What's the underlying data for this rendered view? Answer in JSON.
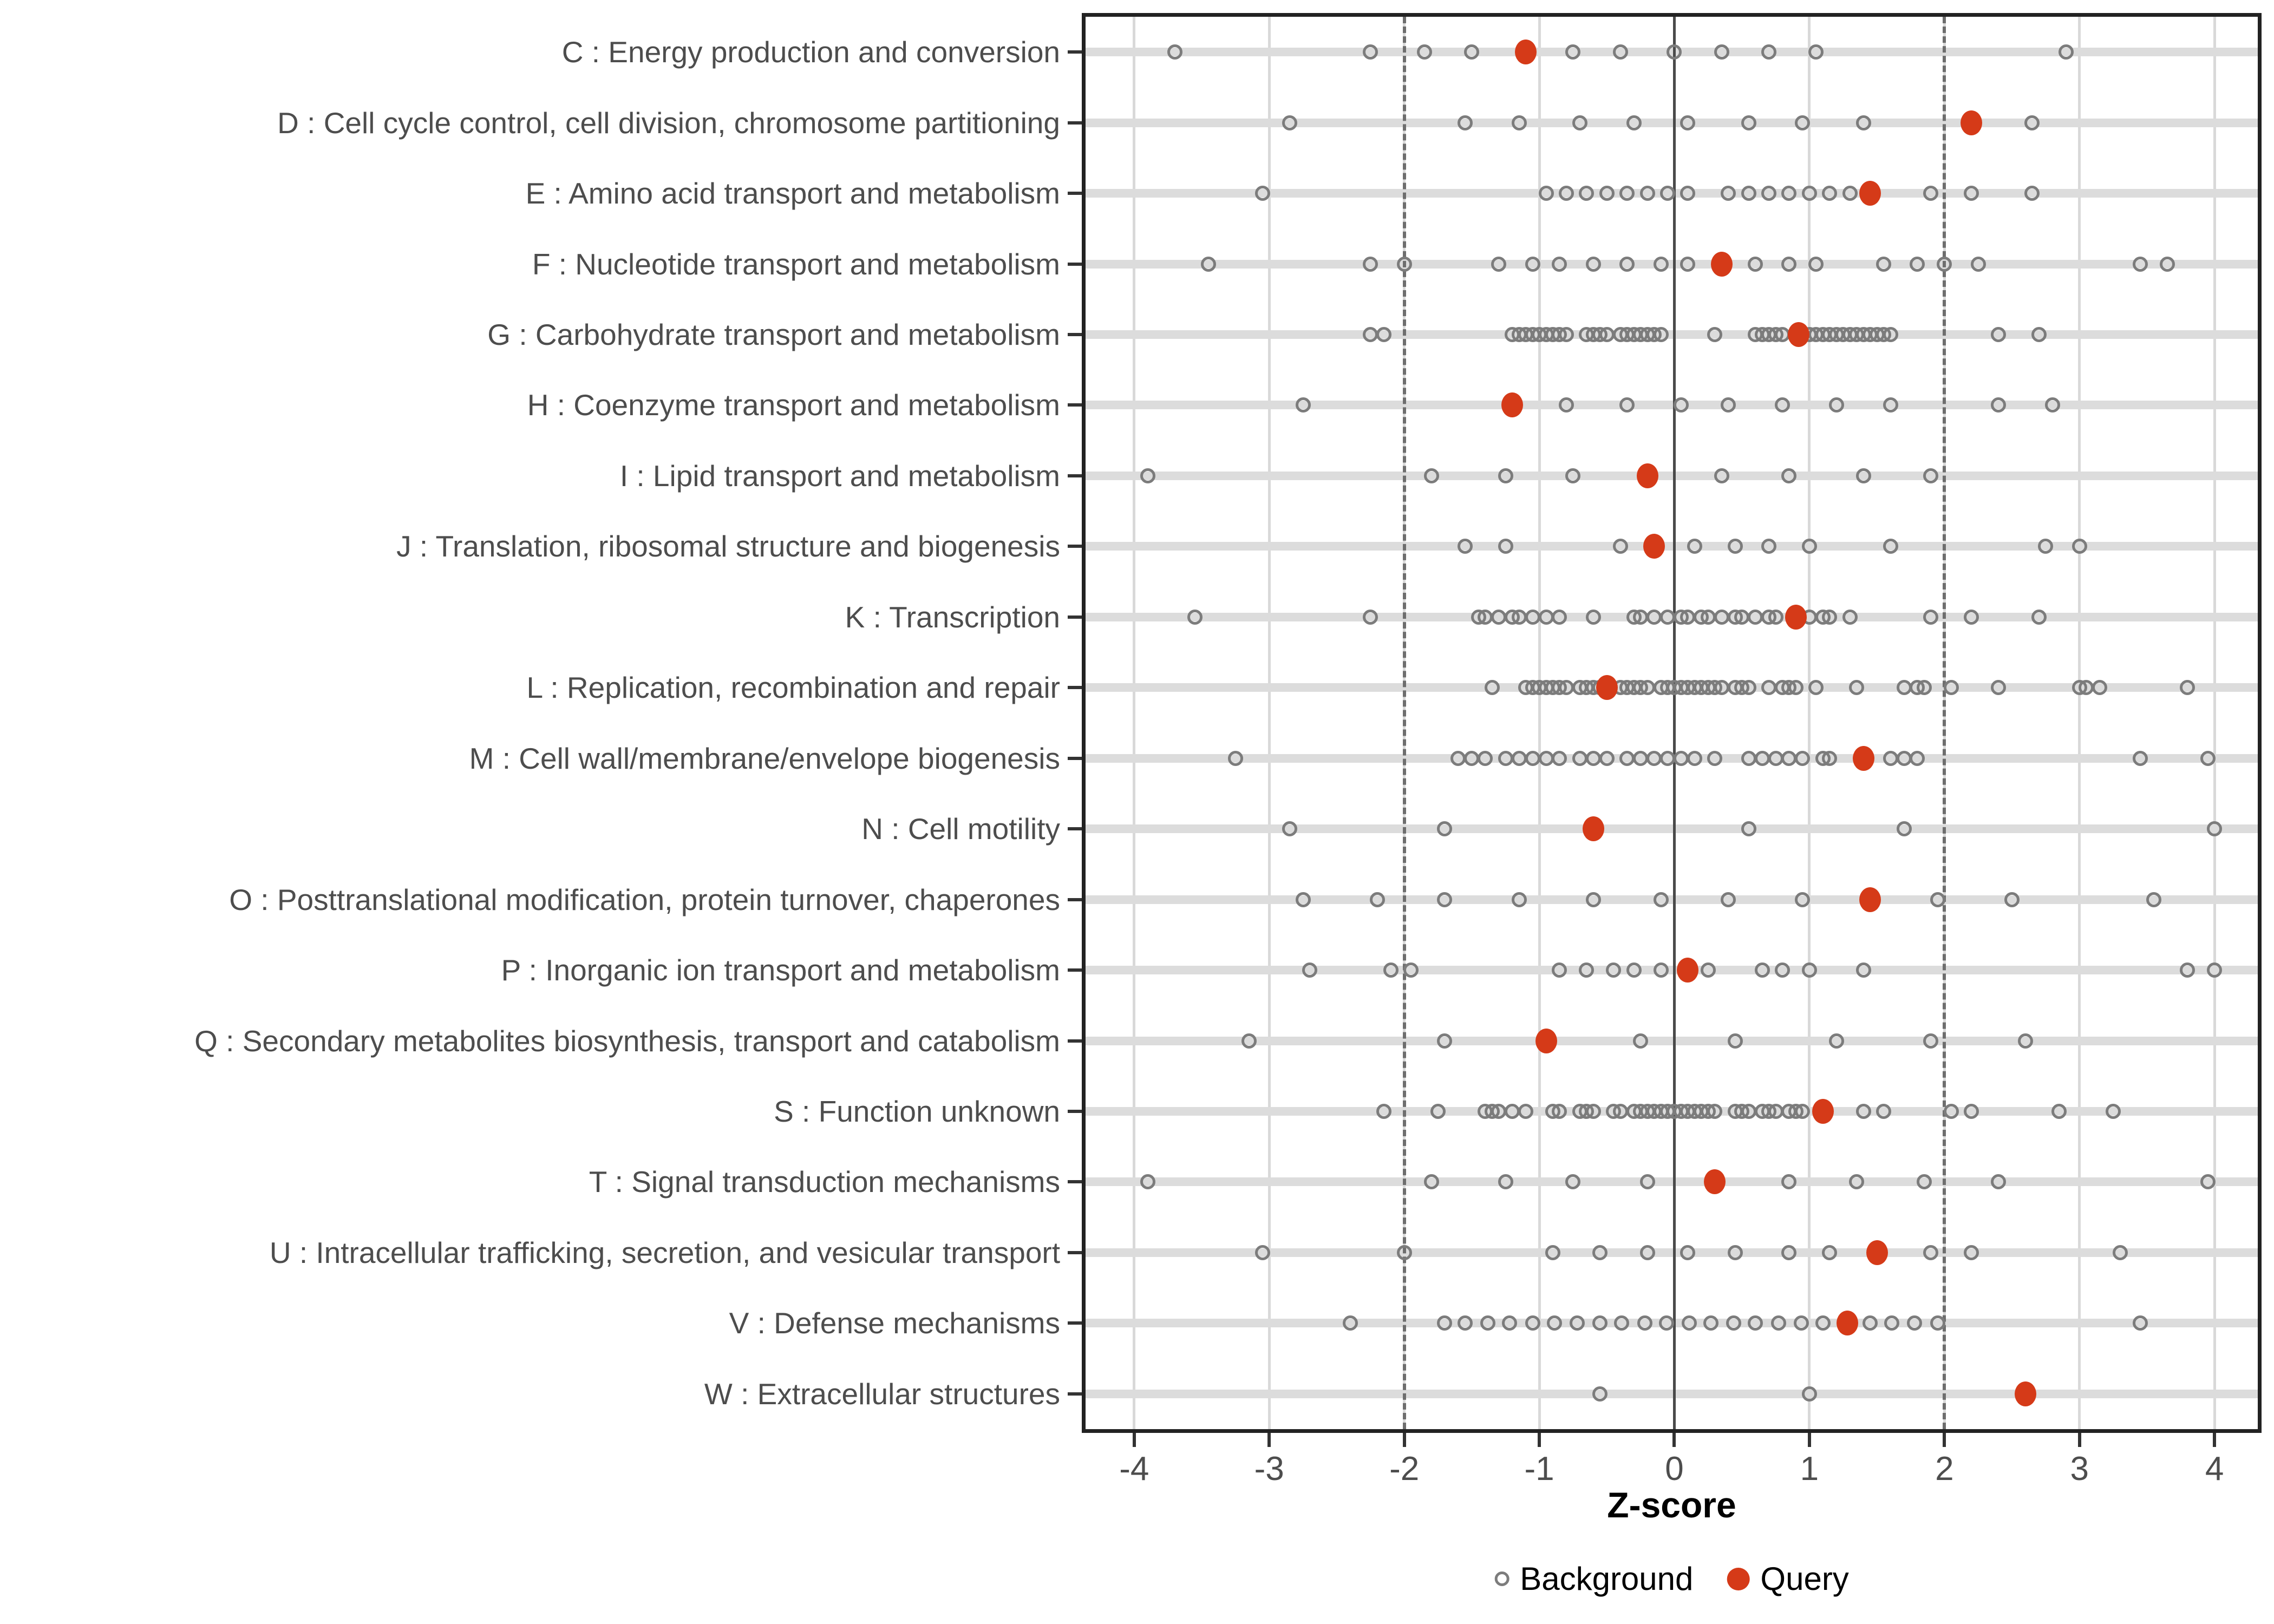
{
  "axis": {
    "title": "Z-score"
  },
  "legend": {
    "background_label": "Background",
    "query_label": "Query"
  },
  "colors": {
    "query_fill": "#d53a18",
    "background_stroke": "#7c7c7c",
    "row_stripe": "#dcdcdc",
    "gridline": "#d9d9d9",
    "zero_line": "#4a4a4a",
    "dashed_line": "#6e6e6e",
    "panel_border": "#222222",
    "axis_text": "#4d4d4d"
  },
  "chart_data": {
    "type": "scatter",
    "title": "",
    "xlabel": "Z-score",
    "ylabel": "",
    "xlim": [
      -4.36,
      4.32
    ],
    "x_ticks": [
      -4,
      -3,
      -2,
      -1,
      0,
      1,
      2,
      3,
      4
    ],
    "grid": "on",
    "legend_position": "bottom",
    "reference_lines": {
      "solid": [
        0
      ],
      "dashed": [
        -2,
        2
      ]
    },
    "series_names": [
      "Background",
      "Query"
    ],
    "rows": [
      {
        "code": "C",
        "label": "C : Energy production and conversion",
        "query": -1.1,
        "background": [
          -3.7,
          -2.25,
          -1.85,
          -1.5,
          -0.75,
          -0.4,
          0,
          0.35,
          0.7,
          1.05,
          2.9
        ]
      },
      {
        "code": "D",
        "label": "D : Cell cycle control, cell division, chromosome partitioning",
        "query": 2.2,
        "background": [
          -2.85,
          -1.55,
          -1.15,
          -0.7,
          -0.3,
          0.1,
          0.55,
          0.95,
          1.4,
          2.65
        ]
      },
      {
        "code": "E",
        "label": "E : Amino acid transport and metabolism",
        "query": 1.45,
        "background": [
          -3.05,
          -0.95,
          -0.8,
          -0.65,
          -0.5,
          -0.35,
          -0.2,
          -0.05,
          0.1,
          0.4,
          0.55,
          0.7,
          0.85,
          1.0,
          1.15,
          1.3,
          1.9,
          2.2,
          2.65
        ]
      },
      {
        "code": "F",
        "label": "F : Nucleotide transport and metabolism",
        "query": 0.35,
        "background": [
          -3.45,
          -2.25,
          -2.0,
          -1.3,
          -1.05,
          -0.85,
          -0.6,
          -0.35,
          -0.1,
          0.1,
          0.6,
          0.85,
          1.05,
          1.55,
          1.8,
          2.0,
          2.25,
          3.45,
          3.65
        ]
      },
      {
        "code": "G",
        "label": "G : Carbohydrate transport and metabolism",
        "query": 0.92,
        "background": [
          -2.25,
          -2.15,
          -1.2,
          -1.15,
          -1.1,
          -1.05,
          -1.0,
          -0.95,
          -0.9,
          -0.85,
          -0.8,
          -0.65,
          -0.6,
          -0.55,
          -0.5,
          -0.4,
          -0.35,
          -0.3,
          -0.25,
          -0.2,
          -0.15,
          -0.1,
          0.3,
          0.6,
          0.65,
          0.7,
          0.75,
          0.8,
          1.0,
          1.05,
          1.1,
          1.15,
          1.2,
          1.25,
          1.3,
          1.35,
          1.4,
          1.45,
          1.5,
          1.55,
          1.6,
          2.4,
          2.7
        ]
      },
      {
        "code": "H",
        "label": "H : Coenzyme transport and metabolism",
        "query": -1.2,
        "background": [
          -2.75,
          -0.8,
          -0.35,
          0.05,
          0.4,
          0.8,
          1.2,
          1.6,
          2.4,
          2.8
        ]
      },
      {
        "code": "I",
        "label": "I : Lipid transport and metabolism",
        "query": -0.2,
        "background": [
          -3.9,
          -1.8,
          -1.25,
          -0.75,
          0.35,
          0.85,
          1.4,
          1.9
        ]
      },
      {
        "code": "J",
        "label": "J : Translation, ribosomal structure and biogenesis",
        "query": -0.15,
        "background": [
          -1.55,
          -1.25,
          -0.4,
          0.15,
          0.45,
          0.7,
          1.0,
          1.6,
          2.75,
          3.0
        ]
      },
      {
        "code": "K",
        "label": "K : Transcription",
        "query": 0.9,
        "background": [
          -3.55,
          -2.25,
          -1.45,
          -1.4,
          -1.3,
          -1.2,
          -1.15,
          -1.05,
          -0.95,
          -0.85,
          -0.6,
          -0.3,
          -0.25,
          -0.15,
          -0.05,
          0.05,
          0.1,
          0.2,
          0.25,
          0.35,
          0.45,
          0.5,
          0.6,
          0.7,
          0.75,
          1.0,
          1.1,
          1.15,
          1.3,
          1.9,
          2.2,
          2.7
        ]
      },
      {
        "code": "L",
        "label": "L : Replication, recombination and repair",
        "query": -0.5,
        "background": [
          -1.35,
          -1.1,
          -1.05,
          -1.0,
          -0.95,
          -0.9,
          -0.85,
          -0.8,
          -0.7,
          -0.65,
          -0.6,
          -0.55,
          -0.4,
          -0.35,
          -0.3,
          -0.25,
          -0.2,
          -0.1,
          -0.05,
          0.0,
          0.05,
          0.1,
          0.15,
          0.2,
          0.25,
          0.3,
          0.35,
          0.45,
          0.5,
          0.55,
          0.7,
          0.8,
          0.85,
          0.9,
          1.05,
          1.35,
          1.7,
          1.8,
          1.85,
          2.05,
          2.4,
          3.0,
          3.05,
          3.15,
          3.8
        ]
      },
      {
        "code": "M",
        "label": "M : Cell wall/membrane/envelope biogenesis",
        "query": 1.4,
        "background": [
          -3.25,
          -1.6,
          -1.5,
          -1.4,
          -1.25,
          -1.15,
          -1.05,
          -0.95,
          -0.85,
          -0.7,
          -0.6,
          -0.5,
          -0.35,
          -0.25,
          -0.15,
          -0.05,
          0.05,
          0.15,
          0.3,
          0.55,
          0.65,
          0.75,
          0.85,
          0.95,
          1.1,
          1.15,
          1.6,
          1.7,
          1.8,
          3.45,
          3.95
        ]
      },
      {
        "code": "N",
        "label": "N : Cell motility",
        "query": -0.6,
        "background": [
          -2.85,
          -1.7,
          0.55,
          1.7,
          4.0
        ]
      },
      {
        "code": "O",
        "label": "O : Posttranslational modification, protein turnover, chaperones",
        "query": 1.45,
        "background": [
          -2.75,
          -2.2,
          -1.7,
          -1.15,
          -0.6,
          -0.1,
          0.4,
          0.95,
          1.95,
          2.5,
          3.55
        ]
      },
      {
        "code": "P",
        "label": "P : Inorganic ion transport and metabolism",
        "query": 0.1,
        "background": [
          -2.7,
          -2.1,
          -1.95,
          -0.85,
          -0.65,
          -0.45,
          -0.3,
          -0.1,
          0.25,
          0.65,
          0.8,
          1.0,
          1.4,
          3.8,
          4.0
        ]
      },
      {
        "code": "Q",
        "label": "Q : Secondary metabolites biosynthesis, transport and catabolism",
        "query": -0.95,
        "background": [
          -3.15,
          -1.7,
          -0.25,
          0.45,
          1.2,
          1.9,
          2.6
        ]
      },
      {
        "code": "S",
        "label": "S : Function unknown",
        "query": 1.1,
        "background": [
          -2.15,
          -1.75,
          -1.4,
          -1.35,
          -1.3,
          -1.2,
          -1.1,
          -0.9,
          -0.85,
          -0.7,
          -0.65,
          -0.6,
          -0.45,
          -0.4,
          -0.3,
          -0.25,
          -0.2,
          -0.15,
          -0.1,
          -0.05,
          0.0,
          0.05,
          0.1,
          0.15,
          0.2,
          0.25,
          0.3,
          0.45,
          0.5,
          0.55,
          0.65,
          0.7,
          0.75,
          0.85,
          0.9,
          0.95,
          1.4,
          1.55,
          2.05,
          2.2,
          2.85,
          3.25
        ]
      },
      {
        "code": "T",
        "label": "T : Signal transduction mechanisms",
        "query": 0.3,
        "background": [
          -3.9,
          -1.8,
          -1.25,
          -0.75,
          -0.2,
          0.85,
          1.35,
          1.85,
          2.4,
          3.95
        ]
      },
      {
        "code": "U",
        "label": "U : Intracellular trafficking, secretion, and vesicular transport",
        "query": 1.5,
        "background": [
          -3.05,
          -2.0,
          -0.9,
          -0.55,
          -0.2,
          0.1,
          0.45,
          0.85,
          1.15,
          1.9,
          2.2,
          3.3
        ]
      },
      {
        "code": "V",
        "label": "V : Defense mechanisms",
        "query": 1.28,
        "background": [
          -2.4,
          -1.7,
          -1.55,
          -1.38,
          -1.22,
          -1.05,
          -0.89,
          -0.72,
          -0.55,
          -0.39,
          -0.22,
          -0.06,
          0.11,
          0.27,
          0.44,
          0.6,
          0.77,
          0.94,
          1.1,
          1.45,
          1.61,
          1.78,
          1.95,
          3.45
        ]
      },
      {
        "code": "W",
        "label": "W : Extracellular structures",
        "query": 2.6,
        "background": [
          -0.55,
          1.0
        ]
      }
    ]
  }
}
